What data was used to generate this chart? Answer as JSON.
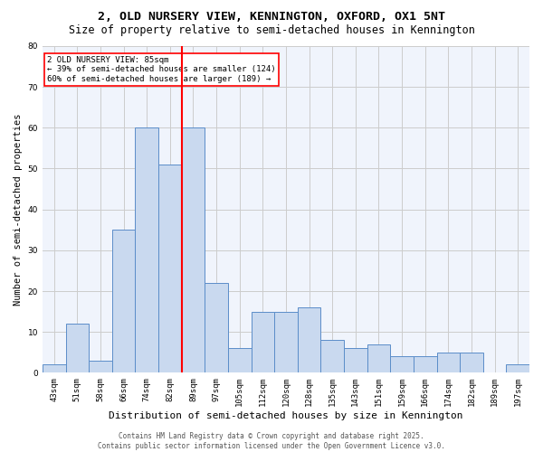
{
  "title": "2, OLD NURSERY VIEW, KENNINGTON, OXFORD, OX1 5NT",
  "subtitle": "Size of property relative to semi-detached houses in Kennington",
  "xlabel": "Distribution of semi-detached houses by size in Kennington",
  "ylabel": "Number of semi-detached properties",
  "categories": [
    "43sqm",
    "51sqm",
    "58sqm",
    "66sqm",
    "74sqm",
    "82sqm",
    "89sqm",
    "97sqm",
    "105sqm",
    "112sqm",
    "120sqm",
    "128sqm",
    "135sqm",
    "143sqm",
    "151sqm",
    "159sqm",
    "166sqm",
    "174sqm",
    "182sqm",
    "189sqm",
    "197sqm"
  ],
  "values": [
    2,
    12,
    3,
    35,
    60,
    51,
    60,
    22,
    6,
    15,
    15,
    16,
    8,
    6,
    7,
    4,
    4,
    5,
    5,
    0,
    2
  ],
  "bar_color": "#c9d9ef",
  "bar_edge_color": "#5b8dc9",
  "vline_x": 5.5,
  "vline_color": "red",
  "annotation_text": "2 OLD NURSERY VIEW: 85sqm\n← 39% of semi-detached houses are smaller (124)\n60% of semi-detached houses are larger (189) →",
  "annotation_box_color": "white",
  "annotation_box_edge_color": "red",
  "ylim": [
    0,
    80
  ],
  "yticks": [
    0,
    10,
    20,
    30,
    40,
    50,
    60,
    70,
    80
  ],
  "grid_color": "#cccccc",
  "background_color": "#f0f4fc",
  "footer_text": "Contains HM Land Registry data © Crown copyright and database right 2025.\nContains public sector information licensed under the Open Government Licence v3.0.",
  "title_fontsize": 9.5,
  "subtitle_fontsize": 8.5,
  "xlabel_fontsize": 8,
  "ylabel_fontsize": 7.5,
  "tick_fontsize": 6.5,
  "annotation_fontsize": 6.5,
  "footer_fontsize": 5.5
}
